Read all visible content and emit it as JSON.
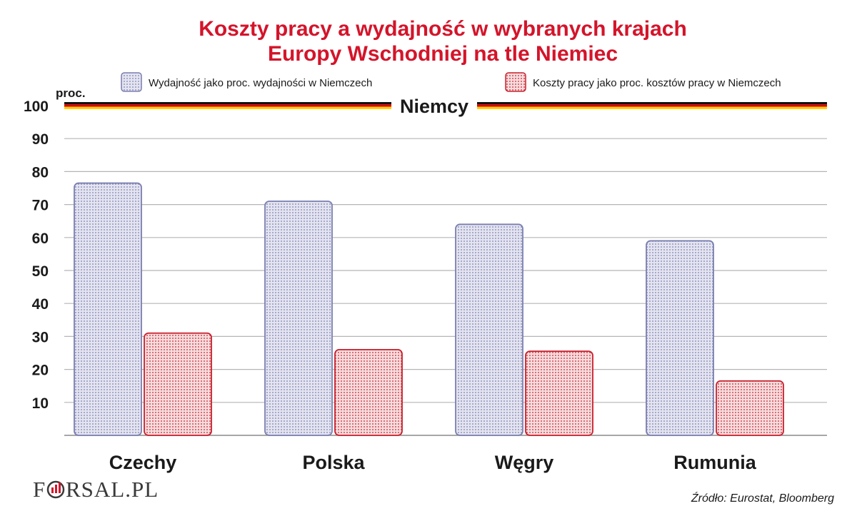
{
  "chart_data": {
    "type": "bar",
    "title": [
      "Koszty pracy a wydajność w wybranych krajach",
      "Europy Wschodniej na tle Niemiec"
    ],
    "ylabel": "proc.",
    "ylim": [
      0,
      100
    ],
    "yticks": [
      10,
      20,
      30,
      40,
      50,
      60,
      70,
      80,
      90,
      100
    ],
    "grid": true,
    "legend_position": "top",
    "categories": [
      "Czechy",
      "Polska",
      "Węgry",
      "Rumunia"
    ],
    "series": [
      {
        "name": "Wydajność jako proc. wydajności w Niemczech",
        "values": [
          76.5,
          71,
          64,
          59
        ],
        "color": "#7b7fb0",
        "fill": "#dcdcec"
      },
      {
        "name": "Koszty pracy jako proc. kosztów pracy w Niemczech",
        "values": [
          31,
          26,
          25.5,
          16.5
        ],
        "color": "#c8202e",
        "fill": "#f3cfd1"
      }
    ],
    "reference_line": {
      "value": 100,
      "label": "Niemcy",
      "colors": [
        "#111111",
        "#dd0000",
        "#ffce00"
      ]
    },
    "source": "Źródło:  Eurostat, Bloomberg"
  },
  "logo": {
    "text": "FORSAL.PL"
  }
}
